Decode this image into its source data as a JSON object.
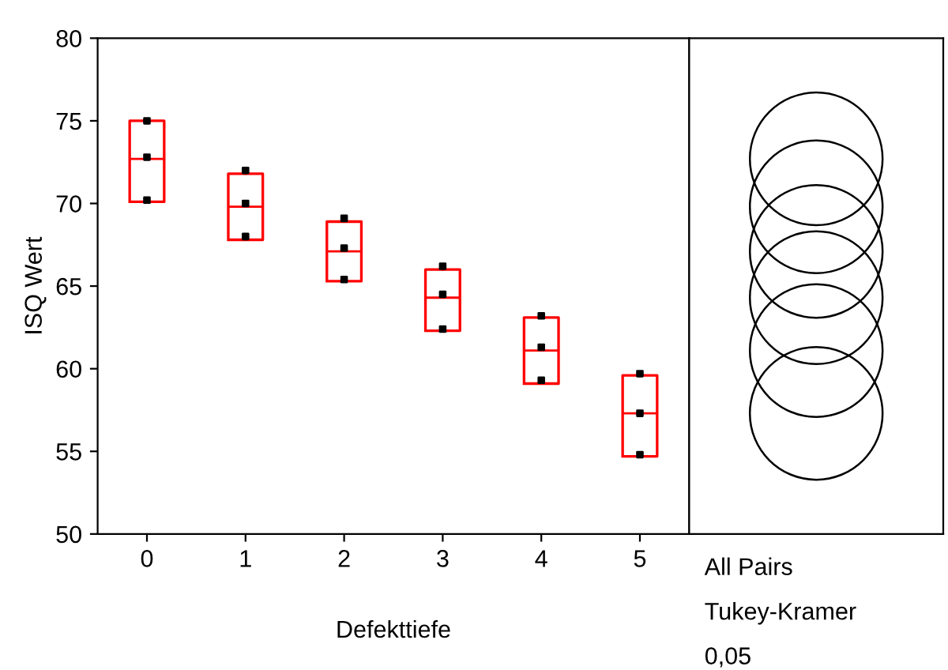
{
  "chart_data": [
    {
      "type": "box",
      "xlabel": "Defekttiefe",
      "ylabel": "ISQ Wert",
      "categories": [
        "0",
        "1",
        "2",
        "3",
        "4",
        "5"
      ],
      "ylim": [
        50,
        80
      ],
      "yticks": [
        50,
        55,
        60,
        65,
        70,
        75,
        80
      ],
      "series": [
        {
          "type": "box",
          "color": "#ff0000",
          "boxes": [
            {
              "low": 70.1,
              "q1": 70.1,
              "median": 72.7,
              "q3": 75.0,
              "high": 75.0
            },
            {
              "low": 67.8,
              "q1": 67.8,
              "median": 69.8,
              "q3": 71.8,
              "high": 71.8
            },
            {
              "low": 65.3,
              "q1": 65.3,
              "median": 67.1,
              "q3": 68.9,
              "high": 68.9
            },
            {
              "low": 62.3,
              "q1": 62.3,
              "median": 64.3,
              "q3": 66.0,
              "high": 66.0
            },
            {
              "low": 59.1,
              "q1": 59.1,
              "median": 61.1,
              "q3": 63.1,
              "high": 63.1
            },
            {
              "low": 54.7,
              "q1": 54.7,
              "median": 57.3,
              "q3": 59.6,
              "high": 59.6
            }
          ]
        },
        {
          "type": "scatter",
          "color": "#000000",
          "marker": "square",
          "x": [
            "0",
            "0",
            "0",
            "1",
            "1",
            "1",
            "2",
            "2",
            "2",
            "3",
            "3",
            "3",
            "4",
            "4",
            "4",
            "5",
            "5",
            "5"
          ],
          "values": [
            75.0,
            72.8,
            70.2,
            72.0,
            70.0,
            68.0,
            69.1,
            67.3,
            65.4,
            66.2,
            64.5,
            62.4,
            63.2,
            61.3,
            59.3,
            59.7,
            57.3,
            54.8
          ]
        }
      ]
    },
    {
      "type": "other",
      "annotations": [
        "All Pairs",
        "Tukey-Kramer",
        "0,05"
      ]
    }
  ]
}
